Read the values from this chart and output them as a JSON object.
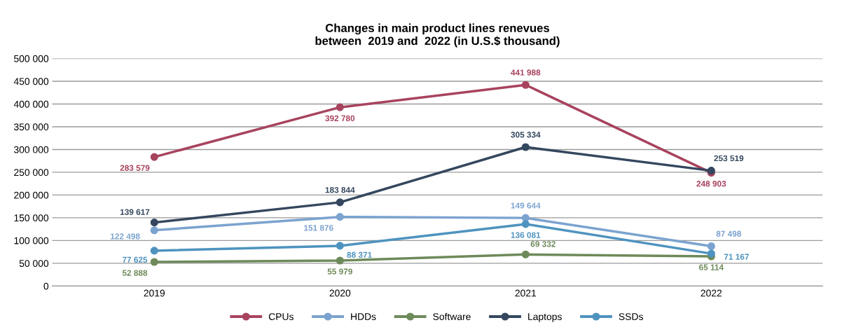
{
  "chart_data": {
    "type": "line",
    "title": "Changes in main product lines renevues\nbetween  2019 and  2022 (in U.S.$ thousand)",
    "categories": [
      "2019",
      "2020",
      "2021",
      "2022"
    ],
    "series": [
      {
        "name": "CPUs",
        "color": "#a8435e",
        "values": [
          283579,
          392780,
          441988,
          248903
        ]
      },
      {
        "name": "HDDs",
        "color": "#7ba3cf",
        "values": [
          122498,
          151876,
          149644,
          87498
        ]
      },
      {
        "name": "Software",
        "color": "#6e8a5a",
        "values": [
          52888,
          55979,
          69332,
          65114
        ]
      },
      {
        "name": "Laptops",
        "color": "#34475e",
        "values": [
          139617,
          183844,
          305334,
          253519
        ]
      },
      {
        "name": "SSDs",
        "color": "#4e93bf",
        "values": [
          77625,
          88371,
          136081,
          71167
        ]
      }
    ],
    "ylim": [
      0,
      500000
    ],
    "yticks": [
      0,
      {
        "value": 50000,
        "label": "50 000"
      },
      {
        "value": 100000,
        "label": "100 000"
      },
      {
        "value": 150000,
        "label": "150 000"
      },
      {
        "value": 200000,
        "label": "200 000"
      },
      {
        "value": 250000,
        "label": "250 000"
      },
      {
        "value": 300000,
        "label": "300 000"
      },
      {
        "value": 350000,
        "label": "350 000"
      },
      {
        "value": 400000,
        "label": "400 000"
      },
      {
        "value": 450000,
        "label": "450 000"
      },
      {
        "value": 500000,
        "label": "500 000"
      }
    ],
    "grid": "y",
    "legend": "bottom",
    "marker": "circle",
    "line_style": "solid",
    "data_labels": true
  }
}
